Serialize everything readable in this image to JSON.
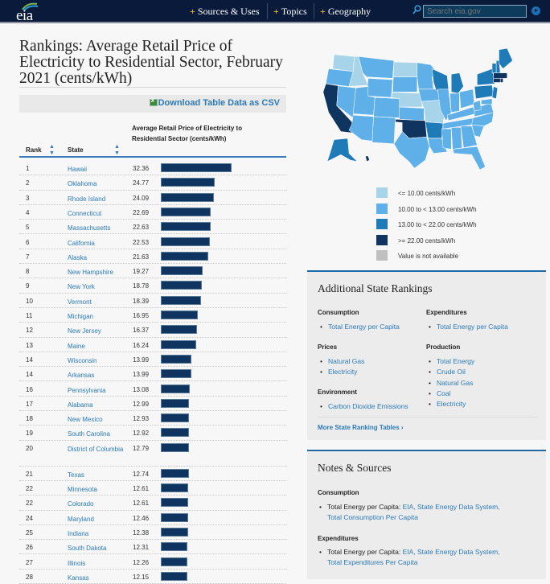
{
  "header": {
    "logo_text": "eia",
    "nav": [
      {
        "label": "Sources & Uses"
      },
      {
        "label": "Topics"
      },
      {
        "label": "Geography"
      }
    ],
    "search_placeholder": "Search eia.gov"
  },
  "page": {
    "title": "Rankings: Average Retail Price of Electricity to Residential Sector, February 2021 (cents/kWh)",
    "download_label": "Download Table Data as CSV"
  },
  "table": {
    "headers": {
      "rank": "Rank",
      "state": "State",
      "value": "Average Retail Price of Electricity to Residential Sector (cents/kWh)"
    },
    "rows": [
      {
        "rank": "1",
        "state": "Hawaii",
        "value": "32.36"
      },
      {
        "rank": "2",
        "state": "Oklahoma",
        "value": "24.77"
      },
      {
        "rank": "3",
        "state": "Rhode Island",
        "value": "24.09"
      },
      {
        "rank": "4",
        "state": "Connecticut",
        "value": "22.69"
      },
      {
        "rank": "5",
        "state": "Massachusetts",
        "value": "22.63"
      },
      {
        "rank": "6",
        "state": "California",
        "value": "22.53"
      },
      {
        "rank": "7",
        "state": "Alaska",
        "value": "21.63"
      },
      {
        "rank": "8",
        "state": "New Hampshire",
        "value": "19.27"
      },
      {
        "rank": "9",
        "state": "New York",
        "value": "18.78"
      },
      {
        "rank": "10",
        "state": "Vermont",
        "value": "18.39"
      },
      {
        "rank": "11",
        "state": "Michigan",
        "value": "16.95"
      },
      {
        "rank": "12",
        "state": "New Jersey",
        "value": "16.37"
      },
      {
        "rank": "13",
        "state": "Maine",
        "value": "16.24"
      },
      {
        "rank": "14",
        "state": "Wisconsin",
        "value": "13.99"
      },
      {
        "rank": "14",
        "state": "Arkansas",
        "value": "13.99"
      },
      {
        "rank": "16",
        "state": "Pennsylvania",
        "value": "13.08"
      },
      {
        "rank": "17",
        "state": "Alabama",
        "value": "12.99"
      },
      {
        "rank": "18",
        "state": "New Mexico",
        "value": "12.93"
      },
      {
        "rank": "19",
        "state": "South Carolina",
        "value": "12.92"
      },
      {
        "rank": "20",
        "state": "District of Columbia",
        "value": "12.79"
      },
      {
        "rank": "21",
        "state": "Texas",
        "value": "12.74"
      },
      {
        "rank": "22",
        "state": "Minnesota",
        "value": "12.61"
      },
      {
        "rank": "22",
        "state": "Colorado",
        "value": "12.61"
      },
      {
        "rank": "24",
        "state": "Maryland",
        "value": "12.46"
      },
      {
        "rank": "25",
        "state": "Indiana",
        "value": "12.38"
      },
      {
        "rank": "26",
        "state": "South Dakota",
        "value": "12.31"
      },
      {
        "rank": "27",
        "state": "Illinois",
        "value": "12.26"
      },
      {
        "rank": "28",
        "state": "Kansas",
        "value": "12.15"
      }
    ]
  },
  "map": {
    "colors": {
      "low": "#a8d4ea",
      "mid": "#5fb0e8",
      "high": "#1f7ab8",
      "top": "#0f3460",
      "na": "#c0c0c0"
    },
    "legend": [
      {
        "label": "<= 10.00 cents/kWh",
        "color": "#a8d4ea"
      },
      {
        "label": "10.00 to < 13.00 cents/kWh",
        "color": "#5fb0e8"
      },
      {
        "label": "13.00 to < 22.00 cents/kWh",
        "color": "#1f7ab8"
      },
      {
        "label": ">= 22.00 cents/kWh",
        "color": "#0f3460"
      },
      {
        "label": "Value is not available",
        "color": "#c0c0c0"
      }
    ]
  },
  "additional_rankings": {
    "title": "Additional State Rankings",
    "groups": [
      {
        "heading": "Consumption",
        "items": [
          "Total Energy per Capita"
        ]
      },
      {
        "heading": "Prices",
        "items": [
          "Natural Gas",
          "Electricity"
        ]
      },
      {
        "heading": "Environment",
        "items": [
          "Carbon Dioxide Emissions"
        ]
      },
      {
        "heading": "Expenditures",
        "items": [
          "Total Energy per Capita"
        ]
      },
      {
        "heading": "Production",
        "items": [
          "Total Energy",
          "Crude Oil",
          "Natural Gas",
          "Coal",
          "Electricity"
        ]
      }
    ],
    "more_link": "More State Ranking Tables ›"
  },
  "notes": {
    "title": "Notes & Sources",
    "sections": [
      {
        "heading": "Consumption",
        "label": "Total Energy per Capita:",
        "link1": "EIA, State Energy Data System,",
        "link2": "Total Consumption Per Capita"
      },
      {
        "heading": "Expenditures",
        "label": "Total Energy per Capita:",
        "link1": "EIA, State Energy Data System,",
        "link2": "Total Expenditures Per Capita"
      }
    ]
  }
}
